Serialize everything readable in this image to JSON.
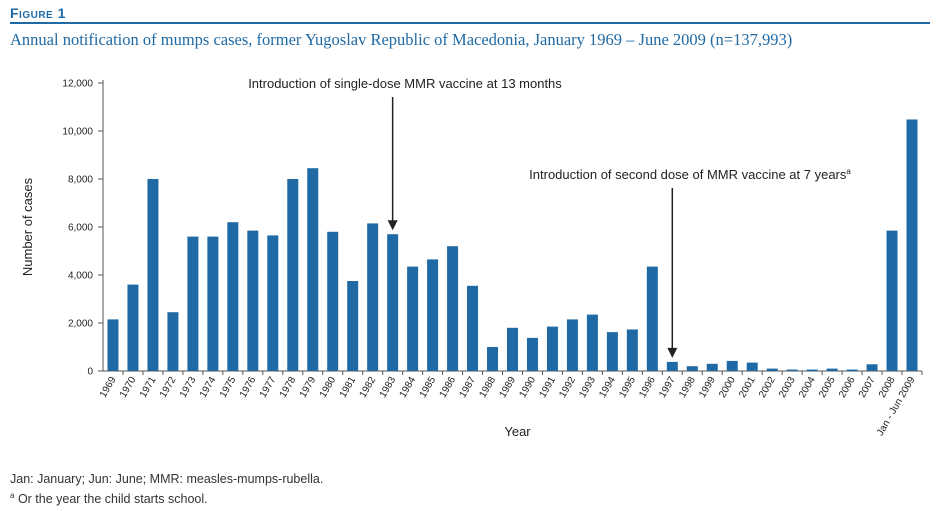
{
  "figure_label": "Figure 1",
  "title": "Annual notification of mumps cases, former Yugoslav Republic of Macedonia, January 1969 – June 2009 (n=137,993)",
  "footnotes": [
    "Jan: January; Jun: June; MMR: measles-mumps-rubella.",
    "Or the year the child starts school."
  ],
  "footnote_marker": "a",
  "colors": {
    "bar": "#1f6aa5",
    "accent": "#1f6aa5",
    "axis": "#555555"
  },
  "chart_data": {
    "type": "bar",
    "xlabel": "Year",
    "ylabel": "Number of cases",
    "ylim": [
      0,
      12000
    ],
    "yticks": [
      0,
      2000,
      4000,
      6000,
      8000,
      10000,
      12000
    ],
    "ytick_labels": [
      "0",
      "2,000",
      "4,000",
      "6,000",
      "8,000",
      "10,000",
      "12,000"
    ],
    "grid": false,
    "categories": [
      "1969",
      "1970",
      "1971",
      "1972",
      "1973",
      "1974",
      "1975",
      "1976",
      "1977",
      "1978",
      "1979",
      "1980",
      "1981",
      "1982",
      "1983",
      "1984",
      "1985",
      "1986",
      "1987",
      "1988",
      "1989",
      "1990",
      "1991",
      "1992",
      "1993",
      "1994",
      "1995",
      "1996",
      "1997",
      "1998",
      "1999",
      "2000",
      "2001",
      "2002",
      "2003",
      "2004",
      "2005",
      "2006",
      "2007",
      "2008",
      "Jan - Jun 2009"
    ],
    "values": [
      2150,
      3600,
      8000,
      2450,
      5600,
      5600,
      6200,
      5850,
      5650,
      8000,
      8450,
      5800,
      3750,
      6150,
      5700,
      4350,
      4650,
      5200,
      3550,
      1000,
      1800,
      1380,
      1850,
      2150,
      2350,
      1620,
      1730,
      4350,
      380,
      200,
      300,
      420,
      350,
      100,
      60,
      60,
      100,
      60,
      280,
      5850,
      10480
    ],
    "annotations": [
      {
        "text": "Introduction of single-dose MMR vaccine at 13 months",
        "category": "1983",
        "superscript": ""
      },
      {
        "text": "Introduction of second dose of MMR vaccine at 7 years",
        "category": "1997",
        "superscript": "a"
      }
    ]
  }
}
